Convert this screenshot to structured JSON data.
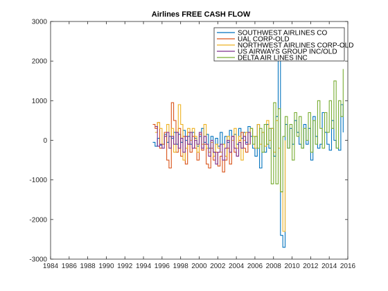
{
  "chart_data": {
    "type": "line",
    "title": "Airlines FREE CASH FLOW",
    "xlabel": "",
    "ylabel": "",
    "xlim": [
      1984,
      2016
    ],
    "ylim": [
      -3000,
      3000
    ],
    "xticks": [
      "1984",
      "1986",
      "1988",
      "1990",
      "1992",
      "1994",
      "1996",
      "1998",
      "2000",
      "2002",
      "2004",
      "2006",
      "2008",
      "2010",
      "2012",
      "2014",
      "2016"
    ],
    "yticks": [
      "-3000",
      "-2000",
      "-1000",
      "0",
      "1000",
      "2000",
      "3000"
    ],
    "grid": false,
    "legend_position": "top-right",
    "series": [
      {
        "name": "SOUTHWEST AIRLINES CO",
        "color": "#0072bd",
        "points": [
          [
            1995.0,
            -50
          ],
          [
            1995.25,
            -150
          ],
          [
            1995.5,
            50
          ],
          [
            1995.75,
            -120
          ],
          [
            1996.0,
            -100
          ],
          [
            1996.25,
            150
          ],
          [
            1996.5,
            -50
          ],
          [
            1996.75,
            100
          ],
          [
            1997.0,
            50
          ],
          [
            1997.25,
            200
          ],
          [
            1997.5,
            -100
          ],
          [
            1997.75,
            150
          ],
          [
            1998.0,
            -50
          ],
          [
            1998.25,
            250
          ],
          [
            1998.5,
            0
          ],
          [
            1998.75,
            100
          ],
          [
            1999.0,
            -100
          ],
          [
            1999.25,
            200
          ],
          [
            1999.5,
            50
          ],
          [
            1999.75,
            -150
          ],
          [
            2000.0,
            100
          ],
          [
            2000.25,
            300
          ],
          [
            2000.5,
            -50
          ],
          [
            2000.75,
            150
          ],
          [
            2001.0,
            -200
          ],
          [
            2001.25,
            100
          ],
          [
            2001.5,
            -300
          ],
          [
            2001.75,
            50
          ],
          [
            2002.0,
            -150
          ],
          [
            2002.25,
            200
          ],
          [
            2002.5,
            -100
          ],
          [
            2002.75,
            100
          ],
          [
            2003.0,
            -50
          ],
          [
            2003.25,
            250
          ],
          [
            2003.5,
            0
          ],
          [
            2003.75,
            150
          ],
          [
            2004.0,
            -100
          ],
          [
            2004.25,
            300
          ],
          [
            2004.5,
            50
          ],
          [
            2004.75,
            200
          ],
          [
            2005.0,
            -50
          ],
          [
            2005.25,
            350
          ],
          [
            2005.5,
            100
          ],
          [
            2005.75,
            -200
          ],
          [
            2006.0,
            -400
          ],
          [
            2006.25,
            400
          ],
          [
            2006.5,
            -700
          ],
          [
            2006.75,
            200
          ],
          [
            2007.0,
            -300
          ],
          [
            2007.25,
            400
          ],
          [
            2007.5,
            -200
          ],
          [
            2007.75,
            300
          ],
          [
            2008.0,
            -400
          ],
          [
            2008.25,
            600
          ],
          [
            2008.5,
            2100
          ],
          [
            2008.75,
            -2400
          ],
          [
            2009.0,
            -2700
          ],
          [
            2009.25,
            400
          ],
          [
            2009.5,
            -200
          ],
          [
            2009.75,
            300
          ],
          [
            2010.0,
            -100
          ],
          [
            2010.25,
            500
          ],
          [
            2010.5,
            200
          ],
          [
            2010.75,
            -100
          ],
          [
            2011.0,
            -200
          ],
          [
            2011.25,
            400
          ],
          [
            2011.5,
            -100
          ],
          [
            2011.75,
            300
          ],
          [
            2012.0,
            -500
          ],
          [
            2012.25,
            600
          ],
          [
            2012.5,
            100
          ],
          [
            2012.75,
            -200
          ],
          [
            2013.0,
            -100
          ],
          [
            2013.25,
            700
          ],
          [
            2013.5,
            200
          ],
          [
            2013.75,
            -100
          ],
          [
            2014.0,
            -250
          ],
          [
            2014.25,
            500
          ],
          [
            2014.5,
            0
          ],
          [
            2014.75,
            -200
          ],
          [
            2015.0,
            -250
          ],
          [
            2015.25,
            900
          ],
          [
            2015.5,
            200
          ]
        ]
      },
      {
        "name": "UAL CORP-OLD",
        "color": "#d95319",
        "points": [
          [
            1995.0,
            400
          ],
          [
            1995.25,
            300
          ],
          [
            1995.5,
            450
          ],
          [
            1995.75,
            -200
          ],
          [
            1996.0,
            -100
          ],
          [
            1996.25,
            200
          ],
          [
            1996.5,
            -500
          ],
          [
            1996.75,
            -700
          ],
          [
            1997.0,
            950
          ],
          [
            1997.25,
            500
          ],
          [
            1997.5,
            -300
          ],
          [
            1997.75,
            300
          ],
          [
            1998.0,
            -400
          ],
          [
            1998.25,
            100
          ],
          [
            1998.5,
            -600
          ],
          [
            1998.75,
            200
          ],
          [
            1999.0,
            -300
          ],
          [
            1999.25,
            100
          ],
          [
            1999.5,
            -200
          ],
          [
            1999.75,
            -500
          ],
          [
            2000.0,
            150
          ],
          [
            2000.25,
            -250
          ],
          [
            2000.5,
            -100
          ],
          [
            2000.75,
            -600
          ],
          [
            2001.0,
            -700
          ],
          [
            2001.25,
            -200
          ],
          [
            2001.5,
            -500
          ],
          [
            2001.75,
            -300
          ],
          [
            2002.0,
            -650
          ],
          [
            2002.25,
            -400
          ],
          [
            2002.5,
            -800
          ],
          [
            2002.75,
            -500
          ],
          [
            2003.0,
            -200
          ],
          [
            2003.25,
            -600
          ],
          [
            2003.5,
            100
          ],
          [
            2003.75,
            -300
          ],
          [
            2004.0,
            -400
          ],
          [
            2004.25,
            0
          ],
          [
            2004.5,
            200
          ],
          [
            2004.75,
            -200
          ],
          [
            2005.0,
            -300
          ],
          [
            2005.25,
            50
          ]
        ]
      },
      {
        "name": "NORTHWEST AIRLINES CORP-OLD",
        "color": "#edb120",
        "points": [
          [
            1995.25,
            200
          ],
          [
            1995.5,
            450
          ],
          [
            1995.75,
            300
          ],
          [
            1996.0,
            -100
          ],
          [
            1996.25,
            100
          ],
          [
            1996.5,
            400
          ],
          [
            1996.75,
            -200
          ],
          [
            1997.0,
            300
          ],
          [
            1997.25,
            -300
          ],
          [
            1997.5,
            200
          ],
          [
            1997.75,
            900
          ],
          [
            1998.0,
            400
          ],
          [
            1998.25,
            -500
          ],
          [
            1998.5,
            -200
          ],
          [
            1998.75,
            300
          ],
          [
            1999.0,
            0
          ],
          [
            1999.25,
            300
          ],
          [
            1999.5,
            100
          ],
          [
            1999.75,
            -300
          ],
          [
            2000.0,
            200
          ],
          [
            2000.25,
            -100
          ],
          [
            2000.5,
            400
          ],
          [
            2000.75,
            -200
          ],
          [
            2001.0,
            -300
          ],
          [
            2001.25,
            -50
          ],
          [
            2001.5,
            -400
          ],
          [
            2001.75,
            -100
          ],
          [
            2002.0,
            -200
          ],
          [
            2002.25,
            -300
          ],
          [
            2002.5,
            -100
          ],
          [
            2002.75,
            -400
          ],
          [
            2003.0,
            100
          ],
          [
            2003.25,
            -300
          ],
          [
            2003.5,
            0
          ],
          [
            2003.75,
            300
          ],
          [
            2004.0,
            -200
          ],
          [
            2004.25,
            100
          ],
          [
            2004.5,
            -500
          ],
          [
            2004.75,
            0
          ],
          [
            2005.0,
            200
          ],
          [
            2005.25,
            -100
          ],
          [
            2005.5,
            300
          ],
          [
            2005.75,
            100
          ],
          [
            2006.0,
            -200
          ],
          [
            2006.25,
            400
          ],
          [
            2006.5,
            -100
          ],
          [
            2006.75,
            200
          ],
          [
            2007.0,
            -150
          ],
          [
            2007.25,
            500
          ],
          [
            2007.5,
            0
          ],
          [
            2007.75,
            300
          ],
          [
            2008.0,
            -300
          ],
          [
            2008.25,
            500
          ],
          [
            2008.5,
            -200
          ],
          [
            2008.75,
            -1300
          ],
          [
            2009.0,
            -2300
          ],
          [
            2009.25,
            0
          ]
        ]
      },
      {
        "name": "US AIRWAYS GROUP INC/OLD",
        "color": "#7e2f8e",
        "points": [
          [
            1995.25,
            350
          ],
          [
            1995.5,
            -150
          ],
          [
            1995.75,
            -100
          ],
          [
            1996.0,
            -200
          ],
          [
            1996.25,
            100
          ],
          [
            1996.5,
            200
          ],
          [
            1996.75,
            -200
          ],
          [
            1997.0,
            100
          ],
          [
            1997.25,
            -100
          ],
          [
            1997.5,
            200
          ],
          [
            1997.75,
            -200
          ],
          [
            1998.0,
            50
          ],
          [
            1998.25,
            -300
          ],
          [
            1998.5,
            100
          ],
          [
            1998.75,
            -100
          ],
          [
            1999.0,
            200
          ],
          [
            1999.25,
            -200
          ],
          [
            1999.5,
            0
          ],
          [
            1999.75,
            -100
          ],
          [
            2000.0,
            200
          ],
          [
            2000.25,
            -200
          ],
          [
            2000.5,
            100
          ],
          [
            2000.75,
            -100
          ],
          [
            2001.0,
            -400
          ],
          [
            2001.25,
            0
          ],
          [
            2001.5,
            -300
          ],
          [
            2001.75,
            -600
          ],
          [
            2002.0,
            -300
          ],
          [
            2002.25,
            -100
          ],
          [
            2002.5,
            -500
          ],
          [
            2002.75,
            -200
          ],
          [
            2003.0,
            0
          ],
          [
            2003.25,
            -300
          ],
          [
            2003.5,
            100
          ],
          [
            2003.75,
            -200
          ],
          [
            2004.0,
            -400
          ],
          [
            2004.25,
            -50
          ],
          [
            2004.5,
            -200
          ],
          [
            2004.75,
            100
          ],
          [
            2005.0,
            -100
          ],
          [
            2005.25,
            200
          ],
          [
            2005.5,
            -100
          ]
        ]
      },
      {
        "name": "DELTA AIR LINES INC",
        "color": "#77ac30",
        "points": [
          [
            2005.5,
            300
          ],
          [
            2005.75,
            -100
          ],
          [
            2006.0,
            100
          ],
          [
            2006.25,
            -200
          ],
          [
            2006.5,
            300
          ],
          [
            2006.75,
            -300
          ],
          [
            2007.0,
            400
          ],
          [
            2007.25,
            -100
          ],
          [
            2007.5,
            300
          ],
          [
            2007.75,
            -1100
          ],
          [
            2008.0,
            950
          ],
          [
            2008.25,
            -1100
          ],
          [
            2008.5,
            800
          ],
          [
            2008.75,
            -1300
          ],
          [
            2009.0,
            100
          ],
          [
            2009.25,
            600
          ],
          [
            2009.5,
            -200
          ],
          [
            2009.75,
            400
          ],
          [
            2010.0,
            -500
          ],
          [
            2010.25,
            700
          ],
          [
            2010.5,
            100
          ],
          [
            2010.75,
            600
          ],
          [
            2011.0,
            -200
          ],
          [
            2011.25,
            300
          ],
          [
            2011.5,
            0
          ],
          [
            2011.75,
            700
          ],
          [
            2012.0,
            -300
          ],
          [
            2012.25,
            500
          ],
          [
            2012.5,
            -100
          ],
          [
            2012.75,
            1000
          ],
          [
            2013.0,
            300
          ],
          [
            2013.25,
            -200
          ],
          [
            2013.5,
            700
          ],
          [
            2013.75,
            200
          ],
          [
            2014.0,
            1000
          ],
          [
            2014.25,
            300
          ],
          [
            2014.5,
            1500
          ],
          [
            2014.75,
            -200
          ],
          [
            2015.0,
            1000
          ],
          [
            2015.25,
            600
          ],
          [
            2015.5,
            1800
          ]
        ]
      }
    ]
  }
}
